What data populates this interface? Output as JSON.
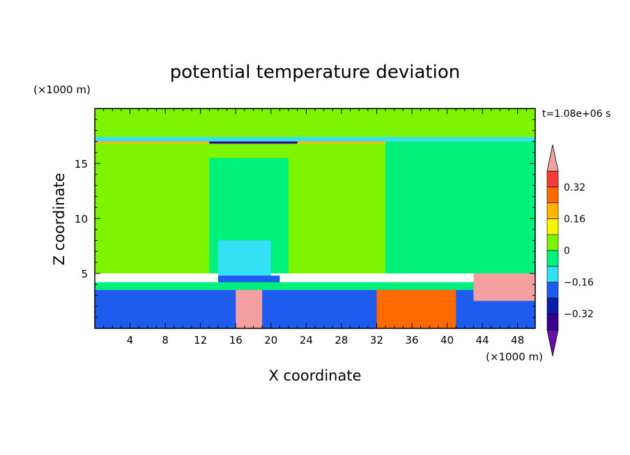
{
  "chart_data": {
    "type": "heatmap",
    "title": "potential temperature deviation",
    "xlabel": "X coordinate",
    "ylabel": "Z coordinate",
    "x_unit": "(×1000 m)",
    "y_unit": "(×1000 m)",
    "time_label": "t=1.08e+06 s",
    "xlim": [
      0,
      50
    ],
    "ylim": [
      0,
      20
    ],
    "x_ticks": [
      4,
      8,
      12,
      16,
      20,
      24,
      28,
      32,
      36,
      40,
      44,
      48
    ],
    "y_ticks": [
      5,
      10,
      15
    ],
    "grid": false,
    "colorbar": {
      "placement": "right",
      "levels": [
        -0.4,
        -0.32,
        -0.24,
        -0.16,
        -0.08,
        0,
        0.08,
        0.16,
        0.24,
        0.32,
        0.4
      ],
      "tick_labels": [
        "0.32",
        "0.16",
        "0",
        "−0.16",
        "−0.32"
      ],
      "tick_values": [
        0.32,
        0.16,
        0,
        -0.16,
        -0.32
      ],
      "colors_low_to_high": [
        "#6a0dad",
        "#3a008f",
        "#0a1fa8",
        "#1e5cf0",
        "#33e0f5",
        "#00f07c",
        "#7df500",
        "#f5f500",
        "#ffb400",
        "#ff6a00",
        "#f53c3c",
        "#f5a0a0"
      ]
    },
    "regions": [
      {
        "x": [
          0,
          50
        ],
        "z": [
          16.8,
          20
        ],
        "value": 0.05
      },
      {
        "x": [
          0,
          50
        ],
        "z": [
          17.0,
          17.4
        ],
        "value": -0.12
      },
      {
        "x": [
          0,
          50
        ],
        "z": [
          16.8,
          17.0
        ],
        "value": 0.2
      },
      {
        "x": [
          13,
          23
        ],
        "z": [
          16.8,
          17.0
        ],
        "value": -0.35
      },
      {
        "x": [
          0,
          50
        ],
        "z": [
          5,
          16.8
        ],
        "value": 0.04
      },
      {
        "x": [
          13,
          22
        ],
        "z": [
          5,
          15.5
        ],
        "value": -0.04
      },
      {
        "x": [
          33,
          50
        ],
        "z": [
          5,
          17
        ],
        "value": -0.04
      },
      {
        "x": [
          14,
          20
        ],
        "z": [
          4,
          8
        ],
        "value": -0.12
      },
      {
        "x": [
          14,
          21
        ],
        "z": [
          3.6,
          4.8
        ],
        "value": -0.2
      },
      {
        "x": [
          0,
          50
        ],
        "z": [
          3.5,
          4.2
        ],
        "value": -0.05
      },
      {
        "x": [
          0,
          50
        ],
        "z": [
          0,
          3.5
        ],
        "value": -0.24
      },
      {
        "x": [
          16,
          19
        ],
        "z": [
          0,
          3.5
        ],
        "value": 0.4
      },
      {
        "x": [
          32,
          41
        ],
        "z": [
          0,
          3.5
        ],
        "value": 0.28
      },
      {
        "x": [
          43,
          50
        ],
        "z": [
          2.5,
          5
        ],
        "value": 0.4
      }
    ]
  }
}
